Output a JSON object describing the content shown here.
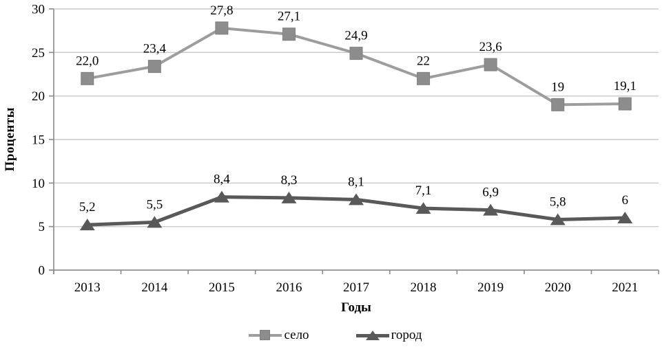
{
  "chart_data": {
    "type": "line",
    "title": "",
    "xlabel": "Годы",
    "ylabel": "Проценты",
    "categories": [
      "2013",
      "2014",
      "2015",
      "2016",
      "2017",
      "2018",
      "2019",
      "2020",
      "2021"
    ],
    "series": [
      {
        "name": "село",
        "marker": "square",
        "values": [
          22.0,
          23.4,
          27.8,
          27.1,
          24.9,
          22,
          23.6,
          19,
          19.1
        ],
        "labels": [
          "22,0",
          "23,4",
          "27,8",
          "27,1",
          "24,9",
          "22",
          "23,6",
          "19",
          "19,1"
        ],
        "line_color": "#9d9d9d",
        "marker_color": "#8d8d8d",
        "marker_border": "#7f7f7f"
      },
      {
        "name": "город",
        "marker": "triangle",
        "values": [
          5.2,
          5.5,
          8.4,
          8.3,
          8.1,
          7.1,
          6.9,
          5.8,
          6
        ],
        "labels": [
          "5,2",
          "5,5",
          "8,4",
          "8,3",
          "8,1",
          "7,1",
          "6,9",
          "5,8",
          "6"
        ],
        "line_color": "#595959",
        "marker_color": "#595959",
        "marker_border": "#595959"
      }
    ],
    "ylim": [
      0,
      30
    ],
    "ytick_step": 5,
    "yticks": [
      "0",
      "5",
      "10",
      "15",
      "20",
      "25",
      "30"
    ],
    "grid": true,
    "legend_position": "bottom"
  },
  "colors": {
    "background": "#ffffff",
    "gridline": "#c9c9c9",
    "axis": "#8f8f8f",
    "text": "#000000"
  }
}
